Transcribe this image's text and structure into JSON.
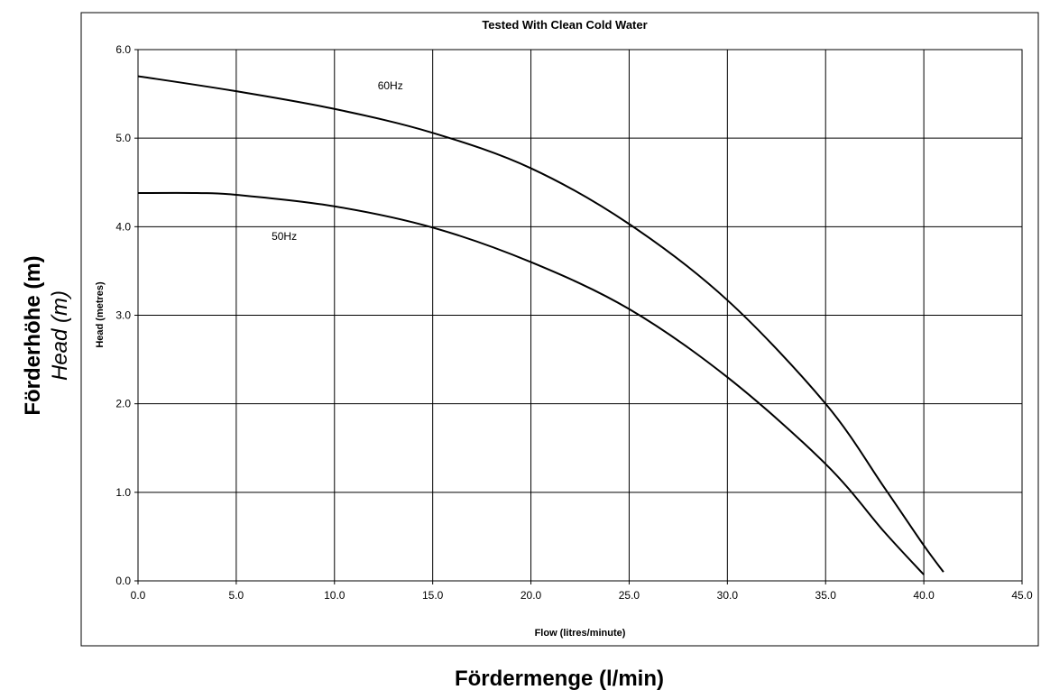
{
  "figure": {
    "top_title": "Tested With Clean Cold Water",
    "outer_ylabel_bold": "Förderhöhe (m)",
    "outer_ylabel_italic": "Head (m)",
    "outer_xlabel": "Fördermenge (l/min)"
  },
  "chart_data": {
    "type": "line",
    "title": "Tested With Clean Cold Water",
    "xlabel": "Flow (litres/minute)",
    "ylabel": "Head (metres)",
    "xlim": [
      0,
      45
    ],
    "ylim": [
      0,
      6
    ],
    "xticks": [
      "0.0",
      "5.0",
      "10.0",
      "15.0",
      "20.0",
      "25.0",
      "30.0",
      "35.0",
      "40.0",
      "45.0"
    ],
    "yticks": [
      "0.0",
      "1.0",
      "2.0",
      "3.0",
      "4.0",
      "5.0",
      "6.0"
    ],
    "grid": true,
    "line_color": "#000000",
    "series": [
      {
        "name": "60Hz",
        "x": [
          0,
          5,
          10,
          15,
          20,
          25,
          30,
          35,
          38,
          40,
          41
        ],
        "y": [
          5.7,
          5.53,
          5.33,
          5.06,
          4.66,
          4.03,
          3.17,
          2.0,
          1.05,
          0.4,
          0.1
        ]
      },
      {
        "name": "50Hz",
        "x": [
          0,
          3,
          5,
          10,
          15,
          20,
          25,
          30,
          35,
          38,
          40
        ],
        "y": [
          4.38,
          4.38,
          4.36,
          4.23,
          3.99,
          3.6,
          3.07,
          2.3,
          1.32,
          0.55,
          0.07
        ]
      }
    ],
    "annotations": [
      {
        "text": "60Hz",
        "series": "60Hz",
        "x": 12.2,
        "y": 5.55
      },
      {
        "text": "50Hz",
        "series": "50Hz",
        "x": 6.8,
        "y": 3.85
      }
    ]
  }
}
